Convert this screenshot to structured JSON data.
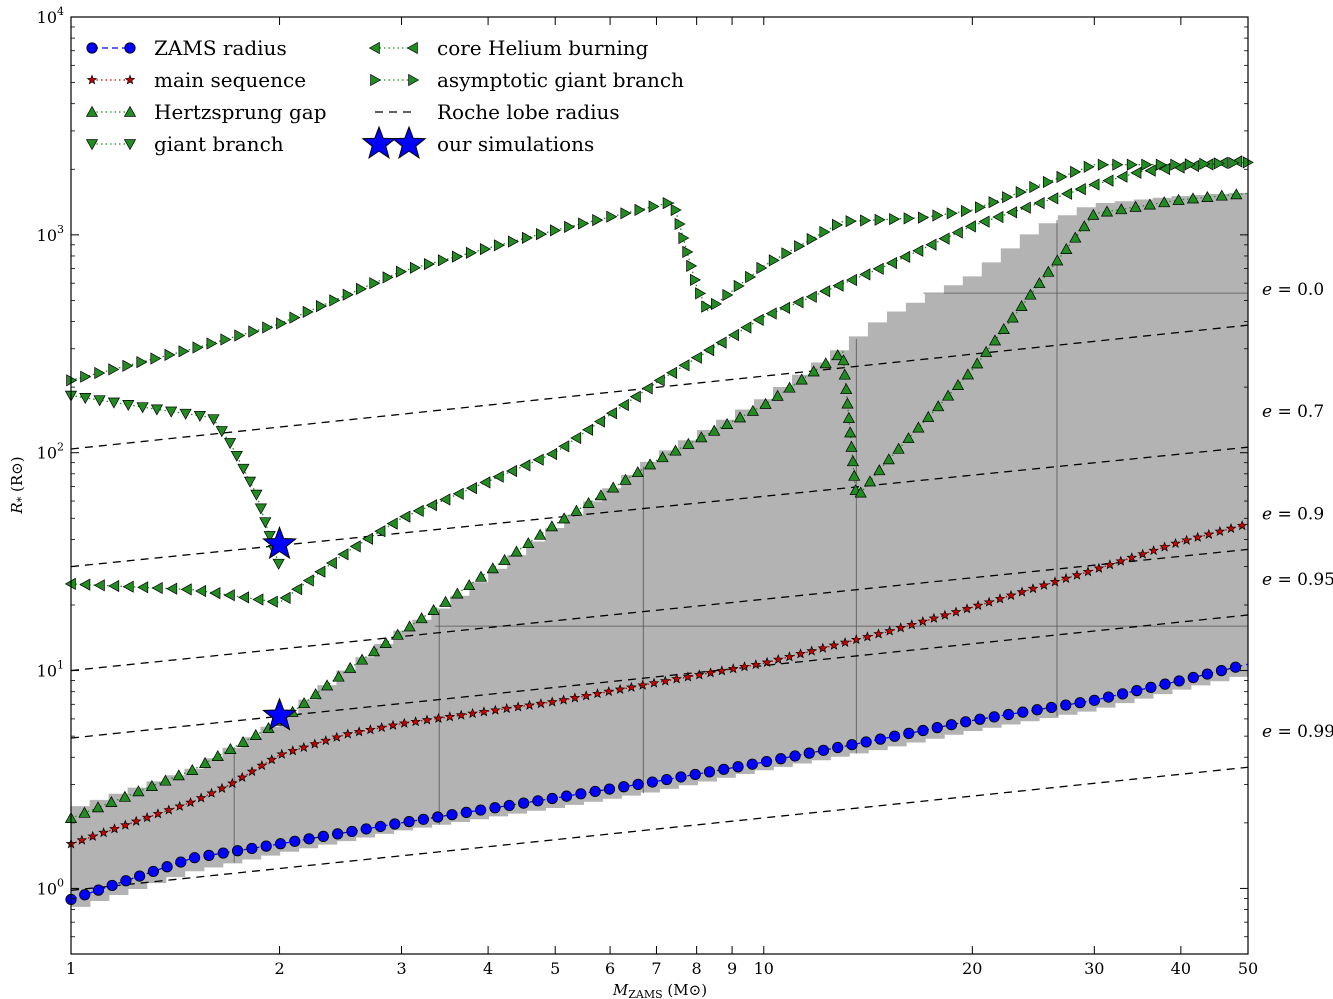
{
  "chart_data": {
    "type": "line",
    "x_scale": "log",
    "y_scale": "log",
    "xlim": [
      1,
      50
    ],
    "ylim": [
      0.5,
      10000
    ],
    "xlabel": "M_ZAMS (M_sun)",
    "xlabel_main": "M",
    "xlabel_sub": "ZAMS",
    "xlabel_unit": " (M",
    "xlabel_unit_close": ")",
    "ylabel": "R_* (R_sun)",
    "ylabel_main": "R",
    "ylabel_sub": "*",
    "ylabel_unit": " (R",
    "ylabel_unit_close": ")",
    "x_ticks": [
      {
        "value": 1,
        "label": "1"
      },
      {
        "value": 2,
        "label": "2"
      },
      {
        "value": 3,
        "label": "3"
      },
      {
        "value": 4,
        "label": "4"
      },
      {
        "value": 5,
        "label": "5"
      },
      {
        "value": 6,
        "label": "6"
      },
      {
        "value": 7,
        "label": "7"
      },
      {
        "value": 8,
        "label": "8"
      },
      {
        "value": 9,
        "label": "9"
      },
      {
        "value": 10,
        "label": "10"
      },
      {
        "value": 20,
        "label": "20"
      },
      {
        "value": 30,
        "label": "30"
      },
      {
        "value": 40,
        "label": "40"
      },
      {
        "value": 50,
        "label": "50"
      }
    ],
    "y_ticks": [
      {
        "value": 1,
        "base": "10",
        "exp": "0"
      },
      {
        "value": 10,
        "base": "10",
        "exp": "1"
      },
      {
        "value": 100,
        "base": "10",
        "exp": "2"
      },
      {
        "value": 1000,
        "base": "10",
        "exp": "3"
      },
      {
        "value": 10000,
        "base": "10",
        "exp": "4"
      }
    ],
    "legend_position": "top-left",
    "series": [
      {
        "name": "ZAMS radius",
        "marker": "circle",
        "color": "#0000ff",
        "line": "dashed",
        "x": [
          1,
          1.5,
          2,
          3,
          5,
          7,
          10,
          15,
          20,
          30,
          40,
          50
        ],
        "y": [
          0.89,
          1.38,
          1.6,
          2.0,
          2.6,
          3.1,
          3.8,
          4.9,
          5.9,
          7.3,
          9.0,
          10.7
        ]
      },
      {
        "name": "main sequence",
        "marker": "star",
        "color": "#cc0000",
        "line": "dotted",
        "x": [
          1,
          1.5,
          1.7,
          2,
          2.5,
          3,
          5,
          7,
          10,
          15,
          20,
          30,
          40,
          50
        ],
        "y": [
          1.6,
          2.5,
          3.0,
          4.1,
          5.1,
          5.7,
          7.2,
          8.8,
          10.8,
          15.0,
          19.5,
          29.0,
          39.0,
          47.0
        ]
      },
      {
        "name": "Hertzsprung gap",
        "marker": "triangle-up",
        "color": "#228b22",
        "line": "dotted",
        "x": [
          1,
          1.5,
          2,
          2.5,
          3,
          3.5,
          5,
          7,
          10,
          13,
          13.6,
          15,
          20,
          25,
          30,
          40,
          50
        ],
        "y": [
          2.1,
          3.5,
          5.8,
          10.0,
          15.0,
          21.0,
          47.0,
          92.0,
          165,
          290,
          62,
          90,
          240,
          600,
          1250,
          1450,
          1550
        ]
      },
      {
        "name": "giant branch",
        "marker": "triangle-down",
        "color": "#228b22",
        "line": "dotted",
        "x": [
          1,
          1.3,
          1.6,
          1.7,
          1.85,
          2
        ],
        "y": [
          183,
          160,
          145,
          110,
          65,
          30
        ]
      },
      {
        "name": "core Helium burning",
        "marker": "triangle-left",
        "color": "#228b22",
        "line": "dotted",
        "x": [
          1,
          1.5,
          2,
          2.5,
          3,
          5,
          7,
          10,
          15,
          20,
          30,
          35,
          50
        ],
        "y": [
          25,
          23.5,
          20.5,
          35,
          50,
          100,
          210,
          420,
          720,
          1100,
          1700,
          1950,
          2200
        ]
      },
      {
        "name": "asymptotic giant branch",
        "marker": "triangle-right",
        "color": "#228b22",
        "line": "dotted",
        "x": [
          1,
          1.5,
          2,
          3,
          5,
          7.4,
          8,
          8.3,
          10,
          13,
          17,
          20,
          30,
          40,
          50
        ],
        "y": [
          215,
          300,
          390,
          680,
          1050,
          1420,
          580,
          450,
          720,
          1150,
          1200,
          1300,
          2100,
          2100,
          2150
        ]
      },
      {
        "name": "our simulations",
        "marker": "big-star",
        "color": "#0000ff",
        "line": "none",
        "x": [
          2,
          2
        ],
        "y": [
          38,
          6.2
        ]
      }
    ],
    "roche_label": "Roche lobe radius",
    "roche_lines": [
      {
        "label": "e = 0.0",
        "e": "0.0",
        "y": [
          104,
          385
        ]
      },
      {
        "label": "e = 0.7",
        "e": "0.7",
        "y": [
          30,
          106
        ]
      },
      {
        "label": "e = 0.9",
        "e": "0.9",
        "y": [
          10,
          36
        ]
      },
      {
        "label": "e = 0.95",
        "e": "0.95",
        "y": [
          4.9,
          18
        ]
      },
      {
        "label": "e = 0.99",
        "e": "0.99",
        "y": [
          0.98,
          3.6
        ]
      }
    ],
    "shaded_region_color": "#b3b3b3",
    "shaded_region_top": {
      "x": [
        1,
        1.5,
        2,
        2.5,
        3,
        3.5,
        5,
        7,
        10,
        13,
        15,
        20,
        25,
        30,
        40,
        50
      ],
      "y": [
        2.3,
        3.5,
        5.8,
        10.0,
        15.0,
        20.0,
        45.0,
        95.0,
        175,
        300,
        420,
        640,
        1080,
        1380,
        1500,
        1560
      ]
    },
    "shaded_region_bottom": {
      "x": [
        1,
        1.5,
        2,
        3,
        5,
        7,
        10,
        15,
        20,
        30,
        40,
        50
      ],
      "y": [
        0.8,
        1.2,
        1.45,
        1.85,
        2.35,
        2.8,
        3.5,
        4.4,
        5.3,
        6.6,
        8.2,
        9.6
      ]
    },
    "mass_markers": [
      1.72,
      3.4,
      6.7,
      13.6,
      26.5
    ],
    "hlines": [
      540,
      16
    ]
  }
}
